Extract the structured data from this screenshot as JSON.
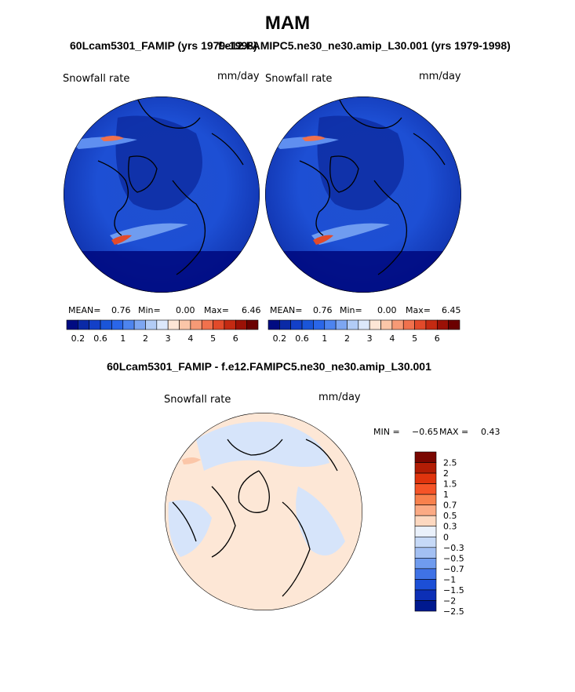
{
  "page_title": "MAM",
  "panel_left": {
    "case": "60Lcam5301_FAMIP (yrs 1979-1998)",
    "field": "Snowfall rate",
    "units": "mm/day",
    "mean_label": "MEAN=",
    "mean": "0.76",
    "min_label": "Min=",
    "min": "0.00",
    "max_label": "Max=",
    "max": "6.46"
  },
  "panel_right": {
    "case": "f.e12.FAMIPC5.ne30_ne30.amip_L30.001 (yrs 1979-1998)",
    "field": "Snowfall rate",
    "units": "mm/day",
    "mean_label": "MEAN=",
    "mean": "0.76",
    "min_label": "Min=",
    "min": "0.00",
    "max_label": "Max=",
    "max": "6.45"
  },
  "panel_diff": {
    "title": "60Lcam5301_FAMIP - f.e12.FAMIPC5.ne30_ne30.amip_L30.001",
    "field": "Snowfall rate",
    "units": "mm/day",
    "min_label": "MIN =",
    "min": "−0.65",
    "max_label": "MAX =",
    "max": "0.43"
  },
  "chart_data": [
    {
      "type": "heatmap",
      "title": "60Lcam5301_FAMIP (yrs 1979-1998)",
      "variable": "Snowfall rate",
      "units": "mm/day",
      "projection": "north polar stereographic",
      "stats": {
        "mean": 0.76,
        "min": 0.0,
        "max": 6.46
      },
      "colorbar": {
        "colors": [
          "#000b82",
          "#0a2aa6",
          "#1340c8",
          "#1a55d8",
          "#2a66e8",
          "#4d84ef",
          "#7da6f2",
          "#b2ccf6",
          "#dce8fb",
          "#fde6d6",
          "#fbc6a8",
          "#f79a76",
          "#f0714d",
          "#e24a2a",
          "#c42a12",
          "#9b1106",
          "#6b0000"
        ],
        "tick_labels": [
          "0.2",
          "0.6",
          "1",
          "2",
          "3",
          "4",
          "5",
          "6"
        ]
      }
    },
    {
      "type": "heatmap",
      "title": "f.e12.FAMIPC5.ne30_ne30.amip_L30.001 (yrs 1979-1998)",
      "variable": "Snowfall rate",
      "units": "mm/day",
      "projection": "north polar stereographic",
      "stats": {
        "mean": 0.76,
        "min": 0.0,
        "max": 6.45
      },
      "colorbar": {
        "colors": [
          "#000b82",
          "#0a2aa6",
          "#1340c8",
          "#1a55d8",
          "#2a66e8",
          "#4d84ef",
          "#7da6f2",
          "#b2ccf6",
          "#dce8fb",
          "#fde6d6",
          "#fbc6a8",
          "#f79a76",
          "#f0714d",
          "#e24a2a",
          "#c42a12",
          "#9b1106",
          "#6b0000"
        ],
        "tick_labels": [
          "0.2",
          "0.6",
          "1",
          "2",
          "3",
          "4",
          "5",
          "6"
        ]
      }
    },
    {
      "type": "heatmap",
      "title": "60Lcam5301_FAMIP - f.e12.FAMIPC5.ne30_ne30.amip_L30.001",
      "variable": "Snowfall rate",
      "units": "mm/day",
      "projection": "north polar stereographic",
      "stats": {
        "min": -0.65,
        "max": 0.43
      },
      "colorbar": {
        "orientation": "vertical",
        "colors": [
          "#7a0600",
          "#b21d05",
          "#e0340d",
          "#f55427",
          "#f8814d",
          "#fbaa84",
          "#fdd8c0",
          "#eaf1fb",
          "#c6d9f7",
          "#a3c0f3",
          "#6f9bee",
          "#3f72e6",
          "#1c4fd6",
          "#0c2fb6",
          "#00198f"
        ],
        "tick_labels": [
          "2.5",
          "2",
          "1.5",
          "1",
          "0.7",
          "0.5",
          "0.3",
          "0",
          "−0.3",
          "−0.5",
          "−0.7",
          "−1",
          "−1.5",
          "−2",
          "−2.5"
        ]
      }
    }
  ]
}
